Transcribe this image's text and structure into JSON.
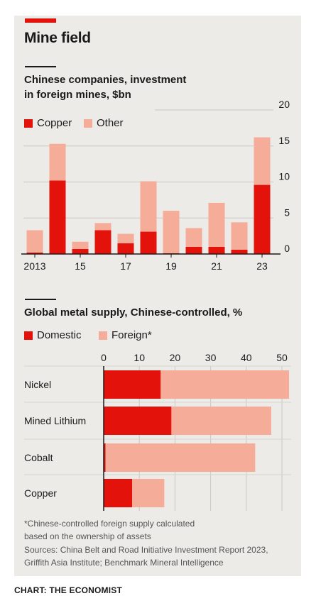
{
  "header": {
    "title": "Mine field"
  },
  "colors": {
    "copper": "#e3120b",
    "other": "#f5ad9a",
    "domestic": "#e3120b",
    "foreign": "#f5ad9a",
    "panel": "#ecebe7"
  },
  "chart_data": [
    {
      "type": "bar",
      "stacked": true,
      "title": "Chinese companies, investment in foreign mines, $bn",
      "title_lines": [
        "Chinese companies, investment",
        "in foreign mines, $bn"
      ],
      "categories": [
        "2013",
        "2014",
        "2015",
        "2016",
        "2017",
        "2018",
        "2019",
        "2020",
        "2021",
        "2022",
        "2023"
      ],
      "x_tick_labels": [
        "2013",
        "15",
        "17",
        "19",
        "21",
        "23"
      ],
      "series": [
        {
          "name": "Copper",
          "values": [
            0.2,
            10.2,
            0.7,
            3.3,
            1.5,
            3.1,
            0.1,
            1.0,
            1.0,
            0.6,
            9.6
          ]
        },
        {
          "name": "Other",
          "values": [
            3.1,
            5.1,
            1.0,
            1.0,
            1.3,
            7.0,
            5.9,
            2.6,
            6.1,
            3.8,
            6.6
          ]
        }
      ],
      "ylim": [
        0,
        20
      ],
      "y_ticks": [
        0,
        5,
        10,
        15,
        20
      ],
      "legend": [
        "Copper",
        "Other"
      ],
      "grid": true
    },
    {
      "type": "bar",
      "orientation": "horizontal",
      "stacked": true,
      "title": "Global metal supply, Chinese-controlled, %",
      "categories": [
        "Nickel",
        "Mined Lithium",
        "Cobalt",
        "Copper"
      ],
      "series": [
        {
          "name": "Domestic",
          "values": [
            16,
            19,
            0.5,
            8
          ]
        },
        {
          "name": "Foreign*",
          "values": [
            36,
            28,
            42,
            9
          ]
        }
      ],
      "xlim": [
        0,
        50
      ],
      "x_ticks": [
        0,
        10,
        20,
        30,
        40,
        50
      ],
      "legend": [
        "Domestic",
        "Foreign*"
      ],
      "grid": true
    }
  ],
  "footnote": [
    "*Chinese-controlled foreign supply calculated",
    "based on the ownership of assets"
  ],
  "sources": [
    "Sources: China Belt and Road Initiative Investment Report 2023,",
    "Griffith Asia Institute; Benchmark Mineral Intelligence"
  ],
  "credit": "CHART: THE ECONOMIST"
}
